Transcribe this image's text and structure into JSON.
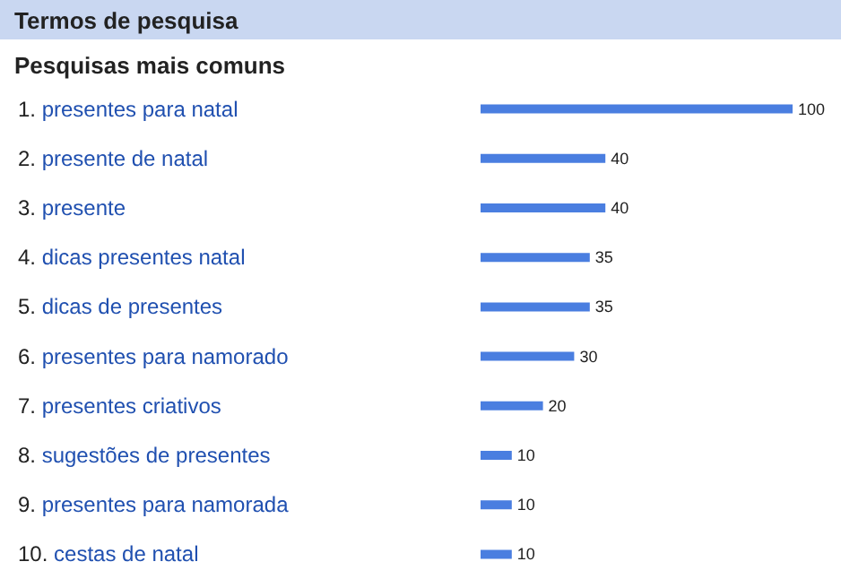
{
  "chart_data": {
    "type": "bar",
    "orientation": "horizontal",
    "title": "Termos de pesquisa",
    "subtitle": "Pesquisas mais comuns",
    "categories": [
      "1. presentes para natal",
      "2. presente de natal",
      "3. presente",
      "4. dicas presentes natal",
      "5. dicas de presentes",
      "6. presentes para namorado",
      "7. presentes criativos",
      "8. sugestões de presentes",
      "9. presentes para namorada",
      "10. cestas de natal"
    ],
    "values": [
      100,
      40,
      40,
      35,
      35,
      30,
      20,
      10,
      10,
      10
    ],
    "color": "#4a7ee0",
    "xlim": [
      0,
      100
    ],
    "data_labels": true,
    "grid": false,
    "tick_labels": "y"
  }
}
